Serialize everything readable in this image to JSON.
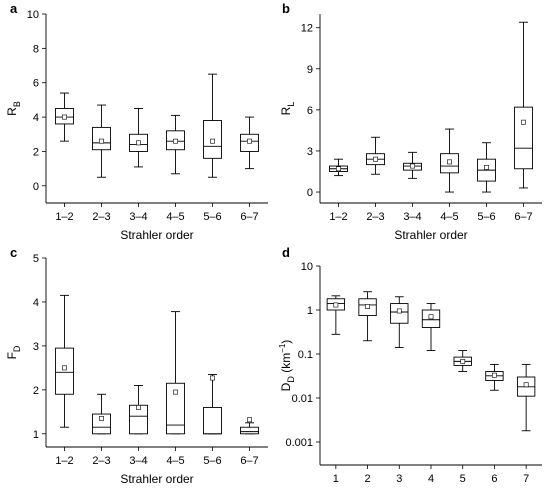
{
  "chart_data": [
    {
      "panel": "a",
      "type": "box",
      "ylabel": "R",
      "ylabel_sub": "B",
      "xlabel": "Strahler order",
      "scale": "linear",
      "ylim": [
        -1,
        10
      ],
      "yticks": [
        0,
        2,
        4,
        6,
        8,
        10
      ],
      "categories": [
        "1–2",
        "2–3",
        "3–4",
        "4–5",
        "5–6",
        "6–7"
      ],
      "boxes": [
        {
          "min": 2.6,
          "q1": 3.6,
          "median": 4.0,
          "q3": 4.5,
          "max": 5.4,
          "mean": 4.0
        },
        {
          "min": 0.5,
          "q1": 2.1,
          "median": 2.5,
          "q3": 3.4,
          "max": 4.7,
          "mean": 2.6
        },
        {
          "min": 1.1,
          "q1": 2.0,
          "median": 2.4,
          "q3": 3.0,
          "max": 4.5,
          "mean": 2.5
        },
        {
          "min": 0.7,
          "q1": 2.1,
          "median": 2.6,
          "q3": 3.2,
          "max": 4.1,
          "mean": 2.6
        },
        {
          "min": 0.5,
          "q1": 1.6,
          "median": 2.3,
          "q3": 3.8,
          "max": 6.5,
          "mean": 2.6
        },
        {
          "min": 1.0,
          "q1": 2.0,
          "median": 2.6,
          "q3": 3.0,
          "max": 4.0,
          "mean": 2.6
        }
      ]
    },
    {
      "panel": "b",
      "type": "box",
      "ylabel": "R",
      "ylabel_sub": "L",
      "xlabel": "Strahler order",
      "scale": "linear",
      "ylim": [
        -0.8,
        13
      ],
      "yticks": [
        0,
        3,
        6,
        9,
        12
      ],
      "categories": [
        "1–2",
        "2–3",
        "3–4",
        "4–5",
        "5–6",
        "6–7"
      ],
      "boxes": [
        {
          "min": 1.2,
          "q1": 1.5,
          "median": 1.7,
          "q3": 1.9,
          "max": 2.4,
          "mean": 1.7
        },
        {
          "min": 1.3,
          "q1": 2.0,
          "median": 2.4,
          "q3": 2.8,
          "max": 4.0,
          "mean": 2.4
        },
        {
          "min": 1.0,
          "q1": 1.6,
          "median": 1.9,
          "q3": 2.1,
          "max": 2.9,
          "mean": 1.9
        },
        {
          "min": 0.0,
          "q1": 1.4,
          "median": 1.9,
          "q3": 2.8,
          "max": 4.6,
          "mean": 2.2
        },
        {
          "min": 0.0,
          "q1": 0.8,
          "median": 1.6,
          "q3": 2.4,
          "max": 3.6,
          "mean": 1.8
        },
        {
          "min": 0.3,
          "q1": 1.7,
          "median": 3.2,
          "q3": 6.2,
          "max": 12.4,
          "mean": 5.1
        }
      ]
    },
    {
      "panel": "c",
      "type": "box",
      "ylabel": "F",
      "ylabel_sub": "D",
      "xlabel": "Strahler order",
      "scale": "linear",
      "ylim": [
        0.7,
        5
      ],
      "yticks": [
        1,
        2,
        3,
        4,
        5
      ],
      "categories": [
        "1–2",
        "2–3",
        "3–4",
        "4–5",
        "5–6",
        "6–7"
      ],
      "boxes": [
        {
          "min": 1.15,
          "q1": 1.9,
          "median": 2.4,
          "q3": 2.95,
          "max": 4.15,
          "mean": 2.5
        },
        {
          "min": 1.0,
          "q1": 1.0,
          "median": 1.15,
          "q3": 1.45,
          "max": 1.9,
          "mean": 1.35
        },
        {
          "min": 1.0,
          "q1": 1.0,
          "median": 1.4,
          "q3": 1.65,
          "max": 2.1,
          "mean": 1.6
        },
        {
          "min": 1.0,
          "q1": 1.0,
          "median": 1.2,
          "q3": 2.15,
          "max": 3.78,
          "mean": 1.95
        },
        {
          "min": 1.0,
          "q1": 1.0,
          "median": 1.0,
          "q3": 1.6,
          "max": 2.35,
          "mean": 2.27
        },
        {
          "min": 1.0,
          "q1": 1.0,
          "median": 1.05,
          "q3": 1.15,
          "max": 1.25,
          "mean": 1.32
        }
      ]
    },
    {
      "panel": "d",
      "type": "box",
      "ylabel": "D",
      "ylabel_sub": "D",
      "ylabel_unit": "(km",
      "ylabel_unit_sup": "−1",
      "ylabel_unit_close": ")",
      "xlabel": "Strahler order",
      "scale": "log",
      "ylim": [
        0.0003,
        10
      ],
      "yticks": [
        0.001,
        0.01,
        0.1,
        1,
        10
      ],
      "ytick_labels": [
        "0.001",
        "0.01",
        "0.1",
        "1",
        "10"
      ],
      "categories": [
        "1",
        "2",
        "3",
        "4",
        "5",
        "6",
        "7"
      ],
      "boxes": [
        {
          "min": 0.28,
          "q1": 1.0,
          "median": 1.4,
          "q3": 1.8,
          "max": 2.1,
          "mean": 1.3
        },
        {
          "min": 0.2,
          "q1": 0.75,
          "median": 1.3,
          "q3": 1.8,
          "max": 2.6,
          "mean": 1.2
        },
        {
          "min": 0.14,
          "q1": 0.5,
          "median": 0.9,
          "q3": 1.4,
          "max": 2.0,
          "mean": 0.95
        },
        {
          "min": 0.12,
          "q1": 0.4,
          "median": 0.6,
          "q3": 1.0,
          "max": 1.4,
          "mean": 0.7
        },
        {
          "min": 0.04,
          "q1": 0.055,
          "median": 0.068,
          "q3": 0.085,
          "max": 0.12,
          "mean": 0.068
        },
        {
          "min": 0.015,
          "q1": 0.025,
          "median": 0.032,
          "q3": 0.04,
          "max": 0.058,
          "mean": 0.033
        },
        {
          "min": 0.0018,
          "q1": 0.011,
          "median": 0.018,
          "q3": 0.03,
          "max": 0.058,
          "mean": 0.02
        }
      ]
    }
  ]
}
